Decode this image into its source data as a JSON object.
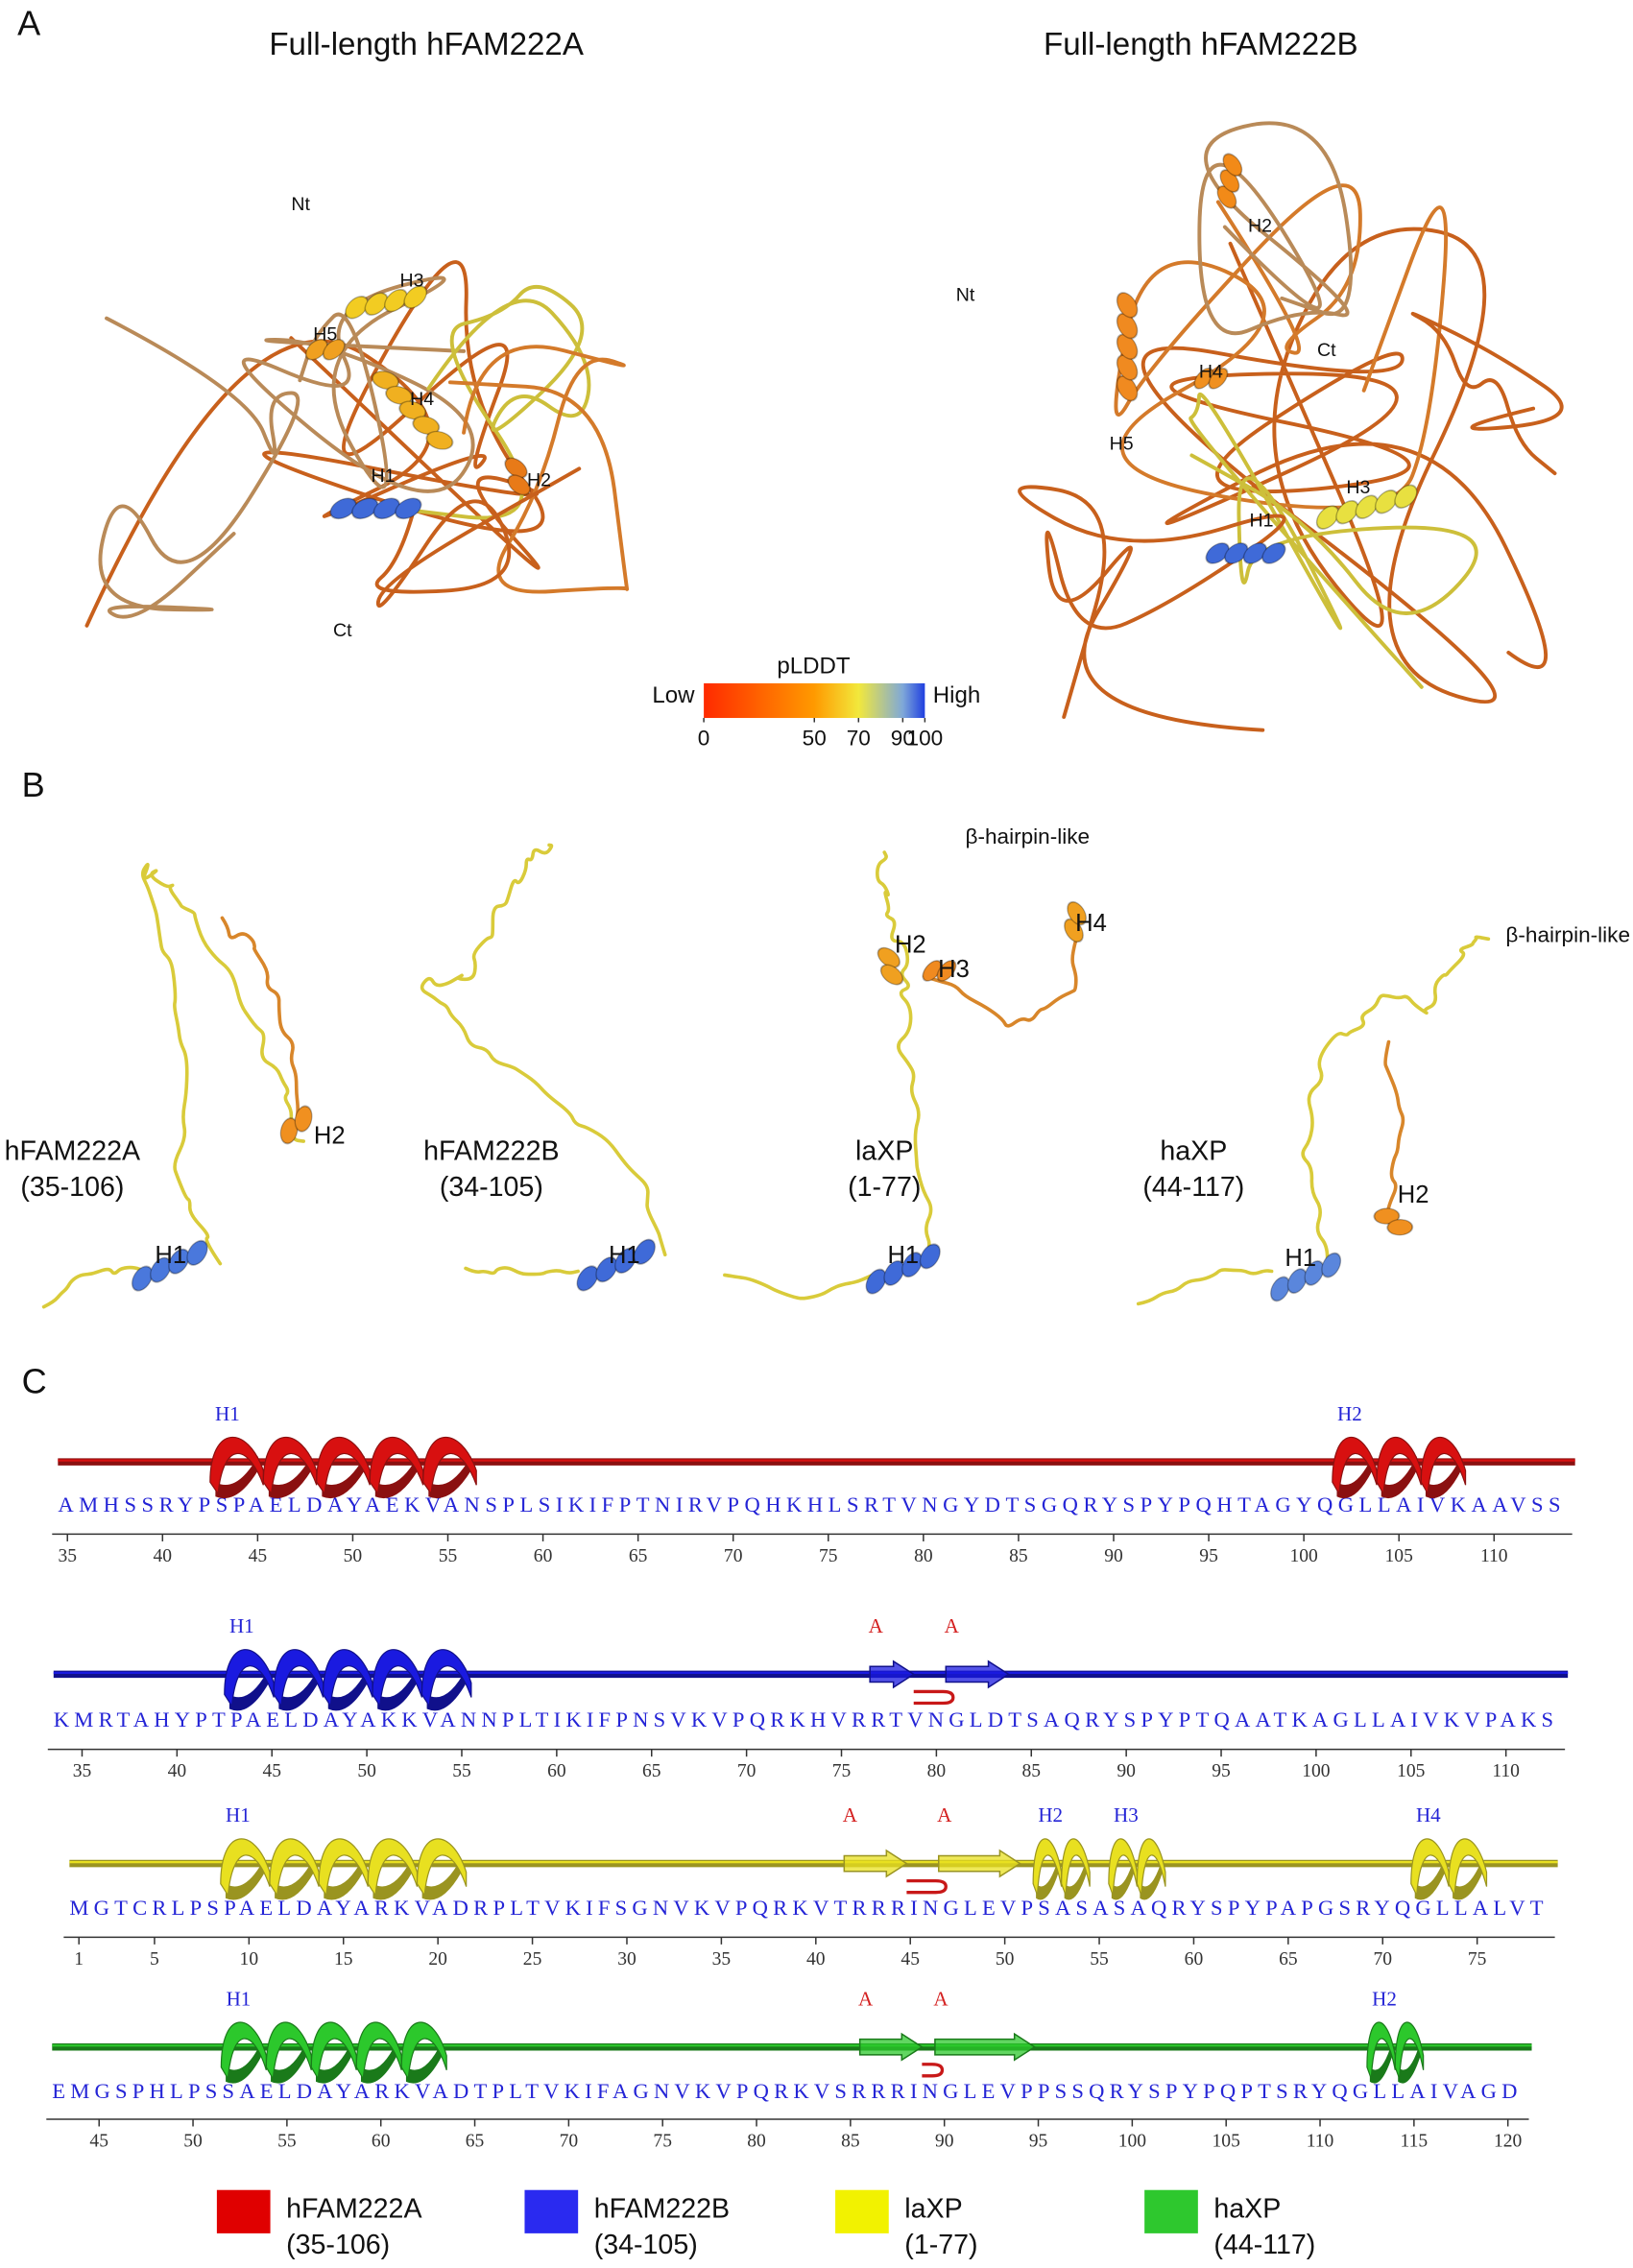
{
  "panels": {
    "a": {
      "letter": "A",
      "titles": [
        "Full-length hFAM222A",
        "Full-length hFAM222B"
      ],
      "labels_left": [
        "Nt",
        "H3",
        "H5",
        "H4",
        "H1",
        "H2",
        "Ct"
      ],
      "labels_right": [
        "H2",
        "Nt",
        "H4",
        "Ct",
        "H5",
        "H1",
        "H3"
      ],
      "colorbar": {
        "title": "pLDDT",
        "low": "Low",
        "high": "High",
        "ticks": [
          0,
          50,
          70,
          90,
          100
        ],
        "colors": [
          "#ff2a00",
          "#ff9a00",
          "#f2e83c",
          "#7fa8d8",
          "#1f3fe0"
        ]
      }
    },
    "b": {
      "letter": "B",
      "structures": [
        {
          "name": "hFAM222A",
          "range": "(35-106)",
          "labels": [
            "H2",
            "H1"
          ]
        },
        {
          "name": "hFAM222B",
          "range": "(34-105)",
          "labels": [
            "H1"
          ]
        },
        {
          "name": "laXP",
          "range": "(1-77)",
          "labels": [
            "β-hairpin-like",
            "H2",
            "H3",
            "H4",
            "H1"
          ]
        },
        {
          "name": "haXP",
          "range": "(44-117)",
          "labels": [
            "β-hairpin-like",
            "H2",
            "H1"
          ]
        }
      ]
    },
    "c": {
      "letter": "C",
      "tracks": [
        {
          "color": "#d81010",
          "line": "#8b1010",
          "start": 35,
          "sequence": "AMHSSRYPSPAELDAYAEKVANSPLSIKIFPTNIRVPQHKHLSRTVNGYDTSGQRYSPYPQHTAGYQGLLAIVKAAVSS",
          "ticks": [
            35,
            40,
            45,
            50,
            55,
            60,
            65,
            70,
            75,
            80,
            85,
            90,
            95,
            100,
            105,
            110
          ],
          "elements": [
            {
              "kind": "helix",
              "label": "H1",
              "start": 43,
              "end": 56
            },
            {
              "kind": "helix",
              "label": "H2",
              "start": 102,
              "end": 108
            }
          ]
        },
        {
          "color": "#1a1ae0",
          "line": "#10108b",
          "start": 34,
          "sequence": "KMRTAHYPTPAELDAYAKKVANNPLTIKIFPNSVKVPQRKHVRRTVNGLDTSAQRYSPYPTQAATKAGLLAIVKVPAKS",
          "ticks": [
            35,
            40,
            45,
            50,
            55,
            60,
            65,
            70,
            75,
            80,
            85,
            90,
            95,
            100,
            105,
            110
          ],
          "elements": [
            {
              "kind": "helix",
              "label": "H1",
              "start": 43,
              "end": 55
            },
            {
              "kind": "strand",
              "label": "A",
              "start": 77,
              "end": 78
            },
            {
              "kind": "strand",
              "label": "A",
              "start": 81,
              "end": 83
            }
          ]
        },
        {
          "color": "#e8e020",
          "line": "#9a9420",
          "start": 1,
          "sequence": "MGTCRLPSPAELDAYARKVADRPLTVKIFSGNVKVPQRKVTRRRINGLEVPSASASAQRYSPYPAPGSRYQGLLALVT",
          "ticks": [
            1,
            5,
            10,
            15,
            20,
            25,
            30,
            35,
            40,
            45,
            50,
            55,
            60,
            65,
            70,
            75
          ],
          "elements": [
            {
              "kind": "helix",
              "label": "H1",
              "start": 9,
              "end": 21
            },
            {
              "kind": "strand",
              "label": "A",
              "start": 42,
              "end": 44
            },
            {
              "kind": "strand",
              "label": "A",
              "start": 47,
              "end": 50
            },
            {
              "kind": "helix",
              "label": "H2",
              "start": 52,
              "end": 54
            },
            {
              "kind": "helix",
              "label": "H3",
              "start": 56,
              "end": 58
            },
            {
              "kind": "helix",
              "label": "H4",
              "start": 72,
              "end": 75
            }
          ]
        },
        {
          "color": "#2cc82c",
          "line": "#1a7a1a",
          "start": 43,
          "sequence": "EMGSPHLPSSAELDAYARKVADTPLTVKIFAGNVKVPQRKVSRRRINGLEVPPSSQRYSPYPQPTSRYQGLLAIVAGD",
          "ticks": [
            45,
            50,
            55,
            60,
            65,
            70,
            75,
            80,
            85,
            90,
            95,
            100,
            105,
            110,
            115,
            120
          ],
          "elements": [
            {
              "kind": "helix",
              "label": "H1",
              "start": 52,
              "end": 63
            },
            {
              "kind": "strand",
              "label": "A",
              "start": 86,
              "end": 88
            },
            {
              "kind": "strand",
              "label": "A",
              "start": 90,
              "end": 94
            },
            {
              "kind": "helix",
              "label": "H2",
              "start": 113,
              "end": 115
            }
          ]
        }
      ],
      "legend": [
        {
          "name": "hFAM222A",
          "range": "(35-106)",
          "color": "#e00000"
        },
        {
          "name": "hFAM222B",
          "range": "(34-105)",
          "color": "#2a2af0"
        },
        {
          "name": "laXP",
          "range": "(1-77)",
          "color": "#f2f200"
        },
        {
          "name": "haXP",
          "range": "(44-117)",
          "color": "#2ec82e"
        }
      ]
    }
  }
}
